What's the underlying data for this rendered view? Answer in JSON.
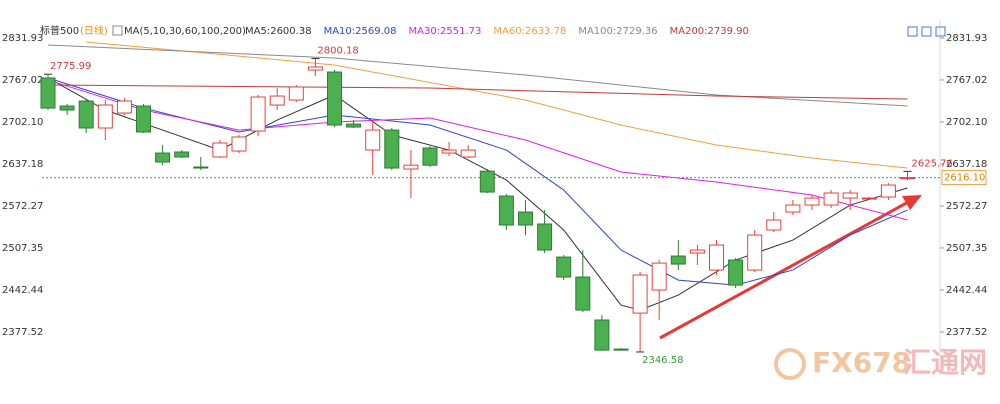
{
  "chart_data": {
    "type": "candlestick",
    "title": "标普500",
    "subtitle": "(日线)",
    "ma_title": "MA(5,10,30,60,100,200)",
    "ylim": [
      2311,
      2852
    ],
    "yticks": [
      2831.93,
      2767.02,
      {
        "value": 2702.1,
        "label": "2702.10"
      },
      2637.18,
      2572.27,
      2507.35,
      2442.44,
      2377.52
    ],
    "up_color": "#e8413c",
    "down_color": "#4caf50",
    "candles": [
      [
        2770.1,
        2775.99,
        2720.6,
        2723.6
      ],
      [
        2726.8,
        2729.9,
        2712.9,
        2720.6
      ],
      [
        2734.5,
        2736.0,
        2685.0,
        2692.8
      ],
      [
        2692.8,
        2736.0,
        2674.2,
        2728.3
      ],
      [
        2716.0,
        2739.1,
        2712.9,
        2734.5
      ],
      [
        2726.8,
        2729.9,
        2685.0,
        2686.6
      ],
      [
        2654.1,
        2666.5,
        2635.3,
        2640.2
      ],
      [
        2655.7,
        2658.7,
        2646.4,
        2648.0
      ],
      [
        2632.5,
        2648.0,
        2627.8,
        2630.9
      ],
      [
        2648.0,
        2674.2,
        2646.4,
        2669.6
      ],
      [
        2657.2,
        2682.0,
        2654.1,
        2678.9
      ],
      [
        2688.1,
        2743.8,
        2680.4,
        2740.7
      ],
      [
        2728.3,
        2754.6,
        2720.6,
        2742.2
      ],
      [
        2736.0,
        2759.2,
        2732.9,
        2756.2
      ],
      [
        2782.4,
        2800.18,
        2773.2,
        2787.1
      ],
      [
        2779.3,
        2782.4,
        2694.3,
        2697.4
      ],
      [
        2698.9,
        2705.1,
        2692.8,
        2694.3
      ],
      [
        2658.7,
        2705.1,
        2620.1,
        2689.6
      ],
      [
        2689.6,
        2692.8,
        2627.8,
        2630.9
      ],
      [
        2629.4,
        2658.7,
        2584.5,
        2635.3
      ],
      [
        2661.9,
        2665.0,
        2632.5,
        2635.3
      ],
      [
        2654.1,
        2671.1,
        2649.5,
        2658.7
      ],
      [
        2648.0,
        2666.5,
        2646.4,
        2658.7
      ],
      [
        2626.0,
        2629.4,
        2592.3,
        2593.8
      ],
      [
        2587.6,
        2590.7,
        2535.1,
        2542.8
      ],
      [
        2562.9,
        2581.5,
        2527.3,
        2542.8
      ],
      [
        2544.4,
        2566.0,
        2499.5,
        2504.2
      ],
      [
        2493.3,
        2496.4,
        2457.7,
        2462.4
      ],
      [
        2462.4,
        2504.2,
        2408.3,
        2411.4
      ],
      [
        2396.0,
        2403.7,
        2348.0,
        2349.5
      ],
      [
        2351.0,
        2352.6,
        2349.5,
        2350.5
      ],
      [
        2406.7,
        2470.1,
        2346.58,
        2465.5
      ],
      [
        2442.3,
        2488.7,
        2396.0,
        2484.0
      ],
      [
        2494.9,
        2519.6,
        2473.2,
        2482.5
      ],
      [
        2499.5,
        2511.9,
        2480.9,
        2504.2
      ],
      [
        2473.2,
        2519.6,
        2465.5,
        2511.9
      ],
      [
        2488.7,
        2491.8,
        2445.4,
        2450.0
      ],
      [
        2473.2,
        2535.1,
        2470.1,
        2527.3
      ],
      [
        2535.1,
        2562.9,
        2532.0,
        2550.6
      ],
      [
        2562.9,
        2581.5,
        2558.2,
        2573.7
      ],
      [
        2573.7,
        2589.2,
        2566.0,
        2584.5
      ],
      [
        2573.7,
        2596.9,
        2569.1,
        2592.3
      ],
      [
        2584.5,
        2596.9,
        2566.0,
        2592.3
      ],
      [
        2583.0,
        2586.1,
        2581.5,
        2584.5
      ],
      [
        2586.1,
        2607.7,
        2581.5,
        2604.6
      ],
      [
        2615.5,
        2625.76,
        2612.4,
        2616.1
      ]
    ],
    "series": [
      {
        "name": "MA5:2600.38",
        "color": "#333333",
        "x": [
          0,
          3,
          6,
          9,
          12,
          15,
          18,
          21,
          24,
          27,
          30,
          31,
          33,
          36,
          39,
          42,
          45
        ],
        "values": [
          2770.1,
          2720.6,
          2689.6,
          2658.7,
          2705.1,
          2743.8,
          2682.0,
          2658.7,
          2612.4,
          2535.1,
          2419.1,
          2411.4,
          2434.6,
          2488.7,
          2519.6,
          2573.7,
          2600.0
        ]
      },
      {
        "name": "MA10:2569.08",
        "color": "#2f45c8",
        "x": [
          0,
          5,
          10,
          15,
          20,
          24,
          27,
          30,
          33,
          36,
          39,
          42,
          45
        ],
        "values": [
          2770.1,
          2723.6,
          2686.6,
          2712.9,
          2697.4,
          2658.7,
          2596.9,
          2504.2,
          2457.7,
          2450.0,
          2473.2,
          2527.3,
          2566.0
        ]
      },
      {
        "name": "MA30:2551.73",
        "color": "#e020e0",
        "x": [
          0,
          5,
          10,
          15,
          20,
          25,
          30,
          35,
          40,
          45
        ],
        "values": [
          2766.9,
          2720.6,
          2689.6,
          2702.0,
          2708.2,
          2674.2,
          2624.8,
          2609.3,
          2589.2,
          2550.6
        ]
      },
      {
        "name": "MA60:2633.78",
        "color": "#f0a040",
        "x": [
          2,
          15,
          25,
          30,
          35,
          40,
          45
        ],
        "values": [
          2825.7,
          2790.2,
          2736.0,
          2697.4,
          2666.5,
          2646.4,
          2630.9
        ]
      },
      {
        "name": "MA100:2729.36",
        "color": "#8a8a8a",
        "x": [
          0,
          15,
          25,
          35,
          45
        ],
        "values": [
          2821.1,
          2801.0,
          2774.7,
          2743.8,
          2726.8
        ]
      },
      {
        "name": "MA200:2739.90",
        "color": "#c23a3a",
        "x": [
          0,
          20,
          35,
          45
        ],
        "values": [
          2759.2,
          2754.6,
          2742.2,
          2737.6
        ]
      }
    ],
    "annotations": [
      {
        "label": "2775.99",
        "candle": 0,
        "at": "high"
      },
      {
        "label": "2800.18",
        "candle": 14,
        "at": "high"
      },
      {
        "label": "2346.58",
        "candle": 31,
        "at": "low"
      },
      {
        "label": "2625.76",
        "candle": 45,
        "at": "high"
      }
    ],
    "last_price": {
      "value": 2616.1,
      "label": "2616.10"
    },
    "watermark": [
      "FX678",
      "汇通网"
    ]
  }
}
